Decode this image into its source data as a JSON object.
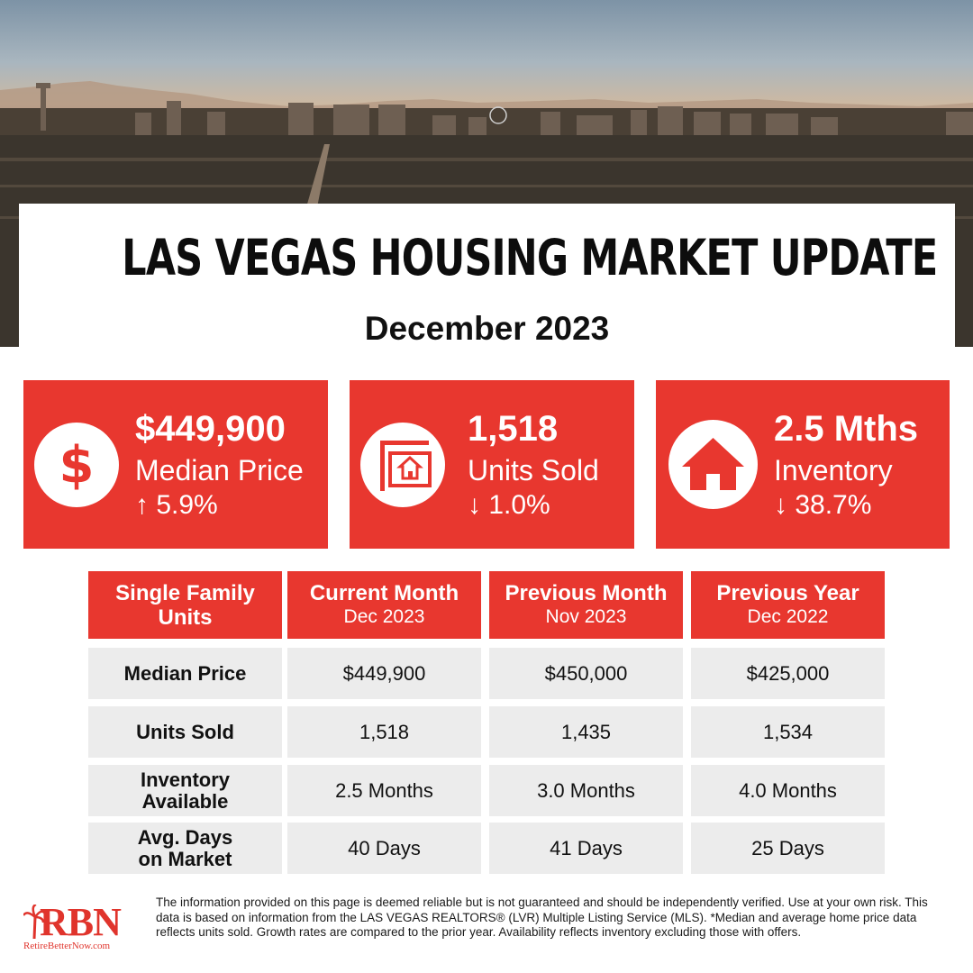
{
  "title": "LAS VEGAS HOUSING MARKET UPDATE",
  "subtitle": "December 2023",
  "cards": [
    {
      "value": "$449,900",
      "label": "Median Price",
      "change": "↑ 5.9%",
      "icon": "dollar-icon"
    },
    {
      "value": "1,518",
      "label": "Units Sold",
      "change": "↓ 1.0%",
      "icon": "sold-sign-icon"
    },
    {
      "value": "2.5 Mths",
      "label": "Inventory",
      "change": "↓ 38.7%",
      "icon": "house-icon"
    }
  ],
  "table": {
    "headers": [
      {
        "line1": "Single Family Units",
        "line2": ""
      },
      {
        "line1": "Current Month",
        "line2": "Dec 2023"
      },
      {
        "line1": "Previous Month",
        "line2": "Nov 2023"
      },
      {
        "line1": "Previous Year",
        "line2": "Dec 2022"
      }
    ],
    "rows": [
      {
        "label": "Median Price",
        "values": [
          "$449,900",
          "$450,000",
          "$425,000"
        ]
      },
      {
        "label": "Units Sold",
        "values": [
          "1,518",
          "1,435",
          "1,534"
        ]
      },
      {
        "label": "Inventory Available",
        "values": [
          "2.5 Months",
          "3.0 Months",
          "4.0 Months"
        ]
      },
      {
        "label": "Avg. Days on Market",
        "values": [
          "40 Days",
          "41 Days",
          "25 Days"
        ]
      }
    ]
  },
  "logo": {
    "text": "RBN",
    "site": "RetireBetterNow.com"
  },
  "disclaimer": "The information provided on this page is deemed reliable but is not guaranteed and should be independently verified. Use at your own risk. This data is based on information from the LAS VEGAS REALTORS® (LVR) Multiple Listing Service (MLS). *Median and average home price data reflects units sold. Growth rates are compared to the prior year. Availability reflects inventory excluding those with offers.",
  "colors": {
    "accent": "#e8372f",
    "cell_bg": "#ececec"
  }
}
